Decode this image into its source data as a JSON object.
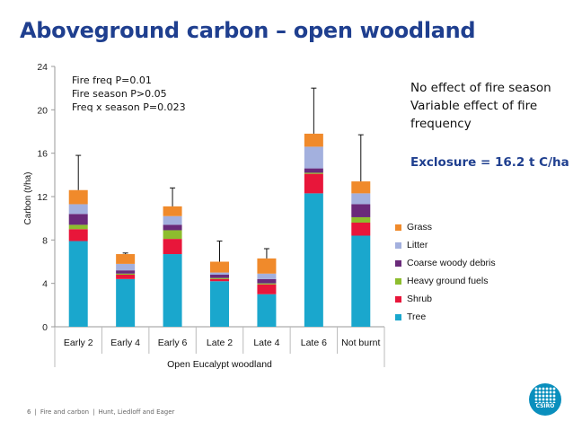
{
  "slide": {
    "title": "Aboveground carbon – open woodland",
    "notes": [
      "No effect of fire season",
      "Variable effect of fire",
      "frequency"
    ],
    "exclosure": "Exclosure = 16.2 t C/ha",
    "stats": [
      "Fire freq P=0.01",
      "Fire season P>0.05",
      "Freq x season P=0.023"
    ],
    "footer": {
      "page": "6",
      "section": "Fire and carbon",
      "authors": "Hunt, Liedloff and Eager"
    },
    "logo_text": "CSIRO"
  },
  "colors": {
    "title": "#1f3f8f",
    "exclosure": "#1f3f8f",
    "Tree": "#1aa7cd",
    "Shrub": "#e8163a",
    "Heavy ground fuels": "#8dbd2e",
    "Coarse woody debris": "#6a2a7a",
    "Litter": "#a3b0de",
    "Grass": "#f08a2b"
  },
  "chart_data": {
    "type": "bar",
    "stacked": true,
    "title": "",
    "xlabel": "Open Eucalypt woodland",
    "ylabel": "Carbon (t/ha)",
    "ylim": [
      0,
      24
    ],
    "yticks": [
      0,
      4,
      8,
      12,
      16,
      20,
      24
    ],
    "grid": false,
    "legend_position": "right",
    "categories": [
      "Early 2",
      "Early 4",
      "Early 6",
      "Late 2",
      "Late 4",
      "Late 6",
      "Not burnt"
    ],
    "series": [
      {
        "name": "Tree",
        "values": [
          7.9,
          4.4,
          6.7,
          4.2,
          3.0,
          12.3,
          8.4
        ]
      },
      {
        "name": "Shrub",
        "values": [
          1.1,
          0.4,
          1.4,
          0.2,
          0.9,
          1.8,
          1.2
        ]
      },
      {
        "name": "Heavy ground fuels",
        "values": [
          0.4,
          0.1,
          0.8,
          0.1,
          0.1,
          0.1,
          0.5
        ]
      },
      {
        "name": "Coarse woody debris",
        "values": [
          1.0,
          0.3,
          0.5,
          0.3,
          0.4,
          0.4,
          1.2
        ]
      },
      {
        "name": "Litter",
        "values": [
          0.9,
          0.6,
          0.8,
          0.2,
          0.5,
          2.0,
          1.0
        ]
      },
      {
        "name": "Grass",
        "values": [
          1.3,
          0.9,
          0.9,
          1.0,
          1.4,
          1.2,
          1.1
        ]
      }
    ],
    "error_top": [
      15.8,
      6.8,
      12.8,
      7.9,
      7.2,
      22.0,
      17.7
    ]
  }
}
